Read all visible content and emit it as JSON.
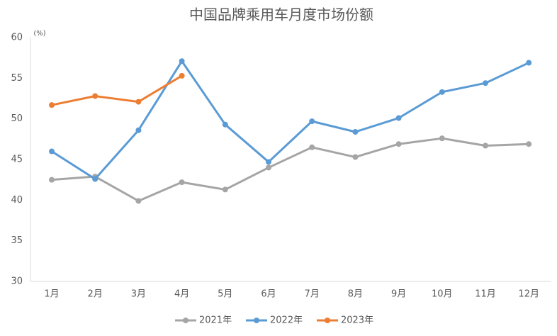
{
  "chart_data": {
    "type": "line",
    "title": "中国品牌乘用车月度市场份额",
    "y_unit": "(%)",
    "categories": [
      "1月",
      "2月",
      "3月",
      "4月",
      "5月",
      "6月",
      "7月",
      "8月",
      "9月",
      "10月",
      "11月",
      "12月"
    ],
    "series": [
      {
        "name": "2021年",
        "color": "#a5a5a5",
        "values": [
          42.5,
          42.9,
          39.9,
          42.2,
          41.3,
          44.0,
          46.5,
          45.3,
          46.9,
          47.6,
          46.7,
          46.9
        ]
      },
      {
        "name": "2022年",
        "color": "#5b9bd5",
        "values": [
          46.0,
          42.6,
          48.6,
          57.1,
          49.3,
          44.7,
          49.7,
          48.4,
          50.1,
          53.3,
          54.4,
          56.9
        ]
      },
      {
        "name": "2023年",
        "color": "#ed7d31",
        "values": [
          51.7,
          52.8,
          52.1,
          55.3,
          null,
          null,
          null,
          null,
          null,
          null,
          null,
          null
        ]
      }
    ],
    "ylim": [
      30,
      60
    ],
    "yticks": [
      30,
      35,
      40,
      45,
      50,
      55,
      60
    ],
    "grid": false,
    "legend": "bottom"
  }
}
